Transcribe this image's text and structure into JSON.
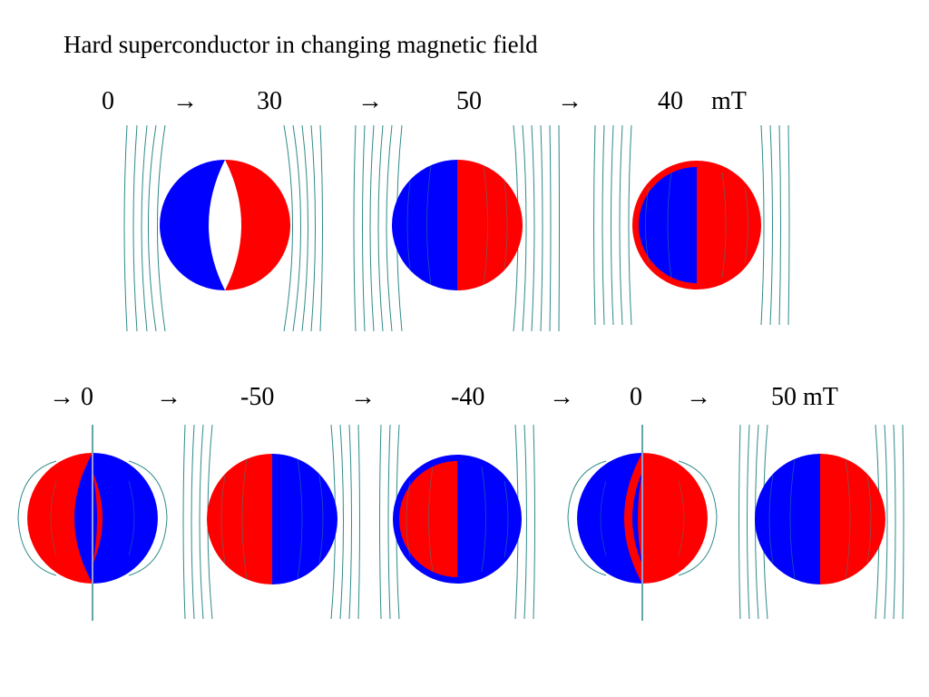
{
  "title": "Hard superconductor in changing magnetic field",
  "colors": {
    "positive": "#ff0000",
    "negative": "#0000ff",
    "field_line": "#2f8a8a",
    "background": "#ffffff"
  },
  "row1": {
    "labels": [
      "0",
      "→",
      "30",
      "→",
      "50",
      "→",
      "40",
      "mT"
    ],
    "panels": [
      {
        "state": "partial-penetration",
        "outer": "blue-left red-right",
        "core": "field-free lens"
      },
      {
        "state": "full-penetration",
        "outer": "blue-left red-right"
      },
      {
        "state": "reversed-shell",
        "outer": "red ring",
        "core": "blue-left red-right"
      }
    ]
  },
  "row2": {
    "labels": [
      "→ 0",
      "→",
      "-50",
      "→",
      "-40",
      "→",
      "0",
      "→",
      "50 mT"
    ],
    "panels": [
      {
        "state": "remanent",
        "outer": "red-left blue-right",
        "core": "blue lens with red center"
      },
      {
        "state": "full-penetration-reversed",
        "outer": "red-left blue-right"
      },
      {
        "state": "reversed-shell",
        "outer": "blue ring",
        "core": "red-left blue-right"
      },
      {
        "state": "remanent-reversed",
        "outer": "blue-left red-right",
        "core": "red lens with blue center"
      },
      {
        "state": "full-penetration",
        "outer": "blue-left red-right"
      }
    ]
  }
}
